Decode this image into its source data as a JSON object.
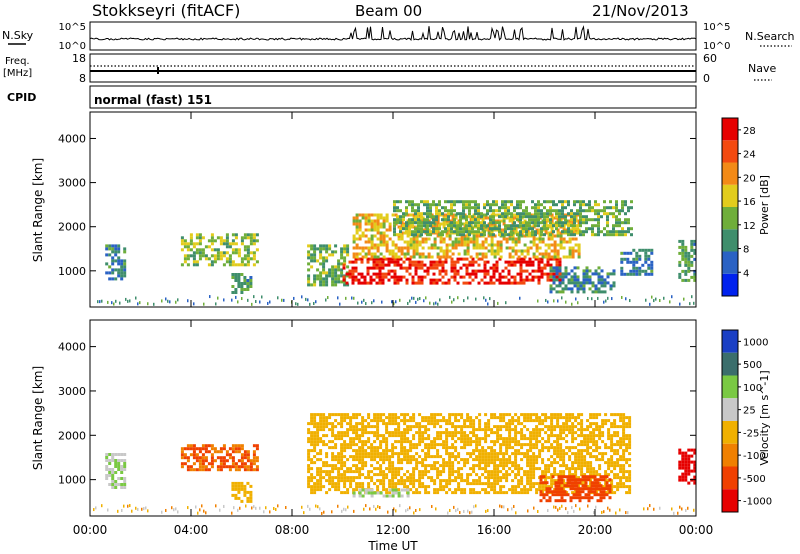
{
  "header": {
    "station": "Stokkseyri (fitACF)",
    "beam": "Beam 00",
    "date": "21/Nov/2013"
  },
  "top_panels": {
    "nsky_label": "N.Sky",
    "nsky_ticks": [
      "10^5",
      "10^0"
    ],
    "nsearch_label": "N.Search",
    "nsearch_ticks": [
      "10^5",
      "10^0"
    ],
    "freq_label": "Freq.",
    "freq_unit": "[MHz]",
    "freq_ticks": [
      "18",
      "8"
    ],
    "nave_label": "Nave",
    "nave_ticks": [
      "60",
      "0"
    ],
    "cpid_label": "CPID",
    "cpid_value": "normal (fast) 151"
  },
  "chart_data": [
    {
      "type": "heatmap",
      "panel": "power",
      "ylabel": "Slant Range [km]",
      "xlabel": "Time UT",
      "x_ticks": [
        "00:00",
        "04:00",
        "08:00",
        "12:00",
        "16:00",
        "20:00",
        "00:00"
      ],
      "x_range_hours": [
        0,
        24
      ],
      "y_ticks": [
        1000,
        2000,
        3000,
        4000
      ],
      "y_range_km": [
        180,
        4600
      ],
      "colorbar": {
        "label": "Power [dB]",
        "ticks": [
          4,
          8,
          12,
          16,
          20,
          24,
          28
        ],
        "range": [
          0,
          30
        ],
        "colors": [
          "#0022ee",
          "#2a62c4",
          "#3f8e6c",
          "#6fae3a",
          "#e2cc1c",
          "#f38a16",
          "#f34a10",
          "#e60000"
        ]
      },
      "echo_regions": [
        {
          "t0": 0.6,
          "t1": 1.4,
          "r0": 800,
          "r1": 1600,
          "power": 8
        },
        {
          "t0": 3.6,
          "t1": 6.6,
          "r0": 1150,
          "r1": 1850,
          "power": 14
        },
        {
          "t0": 5.6,
          "t1": 6.4,
          "r0": 500,
          "r1": 950,
          "power": 10
        },
        {
          "t0": 8.6,
          "t1": 10.2,
          "r0": 700,
          "r1": 1600,
          "power": 12
        },
        {
          "t0": 10.0,
          "t1": 18.6,
          "r0": 700,
          "r1": 1300,
          "power": 27
        },
        {
          "t0": 10.4,
          "t1": 19.4,
          "r0": 1300,
          "r1": 2300,
          "power": 18
        },
        {
          "t0": 12.0,
          "t1": 21.4,
          "r0": 1800,
          "r1": 2600,
          "power": 12
        },
        {
          "t0": 18.2,
          "t1": 20.8,
          "r0": 500,
          "r1": 1100,
          "power": 9
        },
        {
          "t0": 21.0,
          "t1": 22.2,
          "r0": 900,
          "r1": 1500,
          "power": 8
        },
        {
          "t0": 23.3,
          "t1": 24.0,
          "r0": 800,
          "r1": 1700,
          "power": 11
        }
      ]
    },
    {
      "type": "heatmap",
      "panel": "velocity",
      "ylabel": "Slant Range [km]",
      "xlabel": "Time UT",
      "x_ticks": [
        "00:00",
        "04:00",
        "08:00",
        "12:00",
        "16:00",
        "20:00",
        "00:00"
      ],
      "x_range_hours": [
        0,
        24
      ],
      "y_ticks": [
        1000,
        2000,
        3000,
        4000
      ],
      "y_range_km": [
        180,
        4600
      ],
      "colorbar": {
        "label": "Velocity [m s^-1]",
        "ticks": [
          "1000",
          "500",
          "100",
          "25",
          "-25",
          "-100",
          "-500",
          "-1000"
        ],
        "colors": [
          "#1a3fc4",
          "#3b6e6c",
          "#7ac943",
          "#c8c8c8",
          "#f0b000",
          "#f08000",
          "#f04000",
          "#e60000"
        ]
      },
      "echo_regions": [
        {
          "t0": 0.6,
          "t1": 1.4,
          "r0": 800,
          "r1": 1600,
          "velocity": 100
        },
        {
          "t0": 3.6,
          "t1": 6.6,
          "r0": 1200,
          "r1": 1800,
          "velocity": -100
        },
        {
          "t0": 5.6,
          "t1": 6.4,
          "r0": 500,
          "r1": 950,
          "velocity": 0
        },
        {
          "t0": 8.6,
          "t1": 21.4,
          "r0": 700,
          "r1": 2500,
          "velocity": 0
        },
        {
          "t0": 10.4,
          "t1": 12.6,
          "r0": 600,
          "r1": 800,
          "velocity": 100
        },
        {
          "t0": 17.8,
          "t1": 20.6,
          "r0": 500,
          "r1": 1100,
          "velocity": -300
        },
        {
          "t0": 23.3,
          "t1": 24.0,
          "r0": 900,
          "r1": 1700,
          "velocity": -700
        }
      ]
    }
  ]
}
